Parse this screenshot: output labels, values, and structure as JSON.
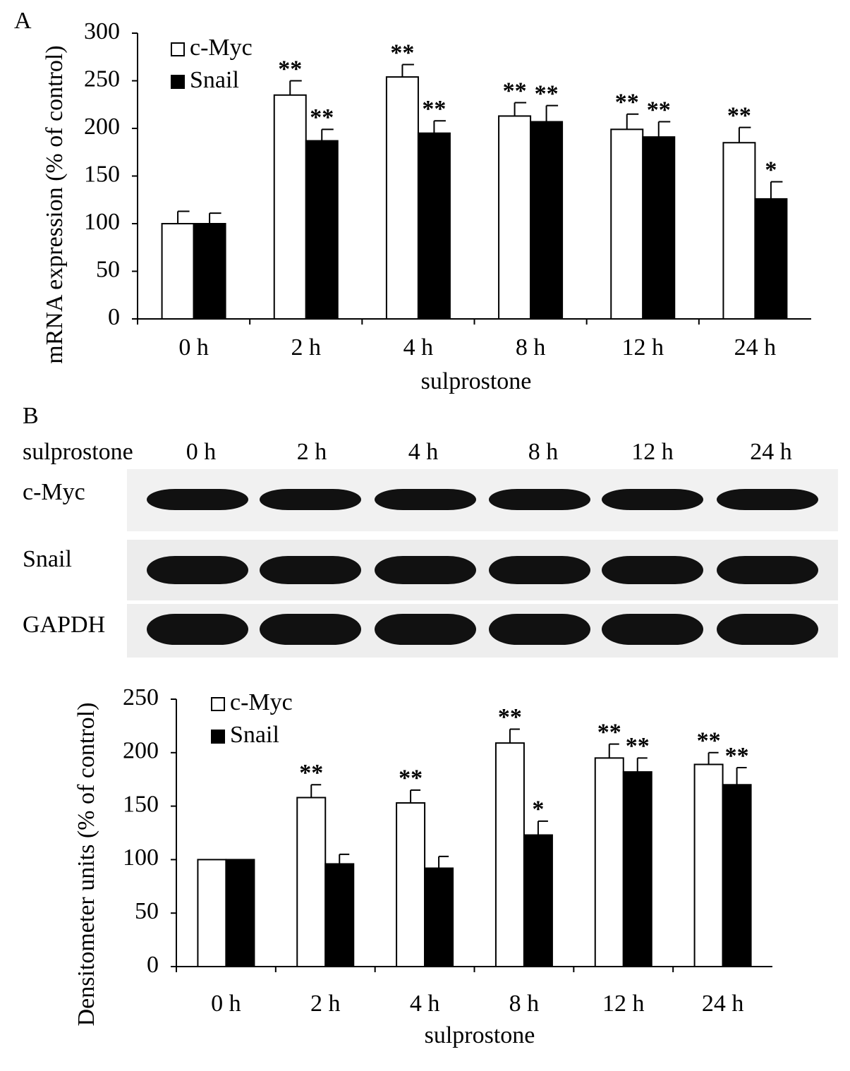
{
  "chart_data": [
    {
      "type": "bar",
      "panel": "A",
      "ylabel": "mRNA expression (% of control)",
      "xlabel": "sulprostone",
      "categories": [
        "0 h",
        "2 h",
        "4 h",
        "8 h",
        "12 h",
        "24 h"
      ],
      "ylim": [
        0,
        300
      ],
      "yticks": [
        0,
        50,
        100,
        150,
        200,
        250,
        300
      ],
      "series": [
        {
          "name": "c-Myc",
          "color": "#ffffff",
          "values": [
            100,
            235,
            254,
            213,
            199,
            185
          ],
          "errors": [
            13,
            15,
            13,
            14,
            16,
            16
          ],
          "significance": [
            null,
            "**",
            "**",
            "**",
            "**",
            "**"
          ]
        },
        {
          "name": "Snail",
          "color": "#000000",
          "values": [
            100,
            187,
            195,
            207,
            191,
            126
          ],
          "errors": [
            11,
            12,
            13,
            17,
            16,
            18
          ],
          "significance": [
            null,
            "**",
            "**",
            "**",
            "**",
            "*"
          ]
        }
      ]
    },
    {
      "type": "bar",
      "ylabel": "Densitometer units (% of  control)",
      "xlabel": "sulprostone",
      "categories": [
        "0 h",
        "2 h",
        "4 h",
        "8 h",
        "12 h",
        "24 h"
      ],
      "ylim": [
        0,
        250
      ],
      "yticks": [
        0,
        50,
        100,
        150,
        200,
        250
      ],
      "series": [
        {
          "name": "c-Myc",
          "color": "#ffffff",
          "values": [
            100,
            158,
            153,
            209,
            195,
            189
          ],
          "errors": [
            null,
            12,
            12,
            13,
            13,
            11
          ],
          "significance": [
            null,
            "**",
            "**",
            "**",
            "**",
            "**"
          ]
        },
        {
          "name": "Snail",
          "color": "#000000",
          "values": [
            100,
            96,
            92,
            123,
            182,
            170
          ],
          "errors": [
            null,
            9,
            11,
            13,
            13,
            16
          ],
          "significance": [
            null,
            null,
            null,
            "*",
            "**",
            "**"
          ]
        }
      ]
    }
  ],
  "blot": {
    "panel": "B",
    "treatment": "sulprostone",
    "lanes": [
      "0 h",
      "2 h",
      "4 h",
      "8 h",
      "12 h",
      "24 h"
    ],
    "rows": [
      "c-Myc",
      "Snail",
      "GAPDH"
    ]
  }
}
